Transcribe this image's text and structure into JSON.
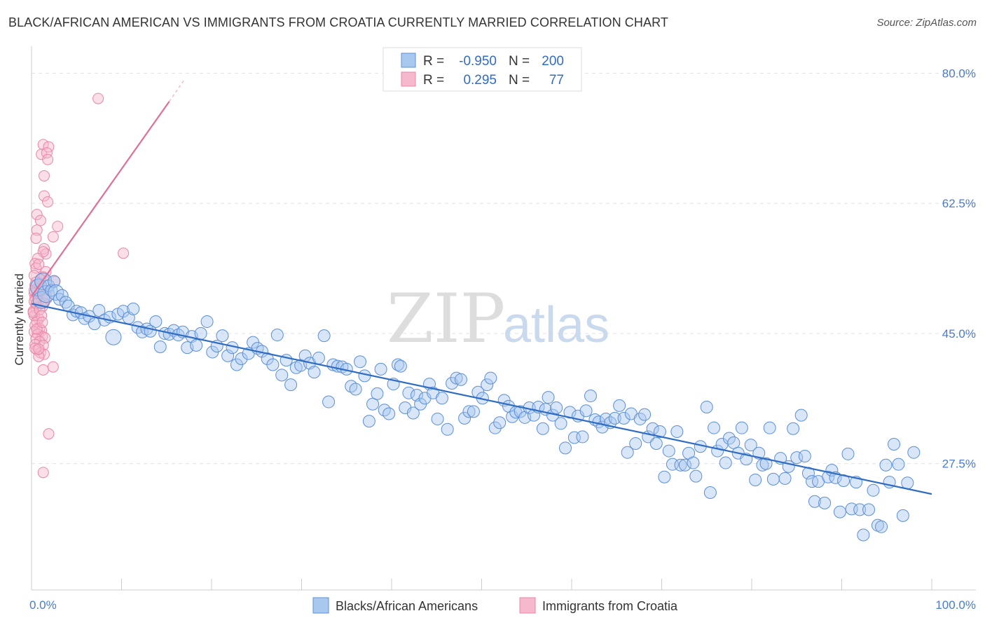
{
  "header": {
    "title": "BLACK/AFRICAN AMERICAN VS IMMIGRANTS FROM CROATIA CURRENTLY MARRIED CORRELATION CHART",
    "source": "Source: ZipAtlas.com"
  },
  "watermark": {
    "part1": "ZIP",
    "part2": "atlas"
  },
  "legend": {
    "rows": [
      {
        "r_label": "R =",
        "r_value": "-0.950",
        "n_label": "N =",
        "n_value": "200"
      },
      {
        "r_label": "R =",
        "r_value": "0.295",
        "n_label": "N =",
        "n_value": "77"
      }
    ]
  },
  "bottom_legend": {
    "items": [
      "Blacks/African Americans",
      "Immigrants from Croatia"
    ]
  },
  "colors": {
    "blue_fill": "#a9c8ef",
    "blue_stroke": "#5b8fd6",
    "blue_line": "#2f6cc4",
    "pink_fill": "#f6b8cc",
    "pink_stroke": "#e886a6",
    "pink_line": "#e06f98",
    "grid": "#e3e3e3"
  },
  "chart_data": {
    "type": "scatter",
    "title": "BLACK/AFRICAN AMERICAN VS IMMIGRANTS FROM CROATIA CURRENTLY MARRIED CORRELATION CHART",
    "xlabel": "",
    "ylabel": "Currently Married",
    "x_tick_labels": [
      "0.0%",
      "100.0%"
    ],
    "y_tick_labels": [
      "27.5%",
      "45.0%",
      "62.5%",
      "80.0%"
    ],
    "y_ticks": [
      27.5,
      45.0,
      62.5,
      80.0
    ],
    "xlim": [
      0,
      100
    ],
    "ylim": [
      10.5,
      82.5
    ],
    "grid": true,
    "legend_position": "top-center",
    "series": [
      {
        "name": "Blacks/African Americans",
        "r": -0.95,
        "n": 200,
        "trend": {
          "x0": 0,
          "y0": 49.0,
          "x1": 100,
          "y1": 23.4
        },
        "points": [
          [
            0.8,
            51.2
          ],
          [
            1.1,
            49.5
          ],
          [
            1.3,
            52.0
          ],
          [
            1.6,
            50.3
          ],
          [
            1.9,
            51.4
          ],
          [
            2.2,
            50.8
          ],
          [
            2.5,
            52.0
          ],
          [
            2.7,
            50.5
          ],
          [
            3.1,
            49.6
          ],
          [
            3.4,
            50.1
          ],
          [
            3.8,
            49.2
          ],
          [
            4.1,
            48.7
          ],
          [
            4.6,
            47.5
          ],
          [
            5.0,
            48.0
          ],
          [
            5.5,
            47.8
          ],
          [
            5.9,
            47.0
          ],
          [
            6.4,
            47.3
          ],
          [
            7.0,
            46.3
          ],
          [
            7.5,
            48.1
          ],
          [
            8.1,
            46.8
          ],
          [
            8.7,
            47.2
          ],
          [
            9.1,
            44.5
          ],
          [
            9.6,
            47.6
          ],
          [
            10.2,
            48.0
          ],
          [
            10.8,
            47.1
          ],
          [
            11.3,
            48.3
          ],
          [
            11.8,
            45.8
          ],
          [
            12.3,
            45.2
          ],
          [
            12.8,
            45.6
          ],
          [
            13.2,
            45.3
          ],
          [
            13.8,
            46.6
          ],
          [
            14.3,
            43.2
          ],
          [
            14.8,
            45.0
          ],
          [
            15.3,
            44.9
          ],
          [
            15.8,
            45.4
          ],
          [
            16.3,
            44.8
          ],
          [
            16.8,
            45.2
          ],
          [
            17.3,
            43.1
          ],
          [
            17.8,
            44.6
          ],
          [
            18.3,
            43.4
          ],
          [
            18.8,
            45.0
          ],
          [
            19.5,
            46.6
          ],
          [
            20.1,
            42.5
          ],
          [
            20.6,
            43.3
          ],
          [
            21.2,
            44.7
          ],
          [
            21.8,
            42.0
          ],
          [
            22.3,
            43.1
          ],
          [
            22.8,
            40.8
          ],
          [
            23.3,
            41.6
          ],
          [
            24.1,
            42.3
          ],
          [
            24.6,
            43.8
          ],
          [
            25.1,
            43.0
          ],
          [
            25.6,
            42.6
          ],
          [
            26.2,
            41.6
          ],
          [
            26.8,
            40.8
          ],
          [
            27.3,
            44.8
          ],
          [
            27.8,
            39.4
          ],
          [
            28.3,
            41.4
          ],
          [
            28.8,
            38.1
          ],
          [
            29.4,
            40.4
          ],
          [
            29.9,
            40.7
          ],
          [
            30.4,
            42.0
          ],
          [
            30.9,
            41.0
          ],
          [
            31.4,
            39.8
          ],
          [
            31.9,
            41.7
          ],
          [
            32.5,
            44.7
          ],
          [
            33.0,
            35.8
          ],
          [
            33.5,
            40.8
          ],
          [
            34.0,
            40.6
          ],
          [
            34.5,
            40.5
          ],
          [
            35.0,
            40.2
          ],
          [
            35.5,
            37.9
          ],
          [
            36.0,
            37.5
          ],
          [
            36.5,
            41.2
          ],
          [
            37.0,
            39.3
          ],
          [
            37.5,
            33.2
          ],
          [
            37.9,
            35.5
          ],
          [
            38.4,
            36.9
          ],
          [
            38.8,
            40.2
          ],
          [
            39.2,
            34.7
          ],
          [
            39.7,
            34.2
          ],
          [
            40.2,
            38.2
          ],
          [
            40.7,
            40.8
          ],
          [
            41.0,
            40.6
          ],
          [
            41.5,
            35.0
          ],
          [
            41.9,
            37.0
          ],
          [
            42.4,
            34.3
          ],
          [
            42.8,
            36.7
          ],
          [
            43.2,
            35.5
          ],
          [
            43.7,
            36.3
          ],
          [
            44.2,
            38.2
          ],
          [
            44.6,
            37.0
          ],
          [
            45.1,
            33.5
          ],
          [
            45.6,
            36.3
          ],
          [
            46.2,
            32.1
          ],
          [
            46.7,
            38.3
          ],
          [
            47.2,
            39.0
          ],
          [
            47.7,
            38.8
          ],
          [
            48.1,
            33.6
          ],
          [
            48.6,
            34.5
          ],
          [
            49.1,
            34.5
          ],
          [
            49.6,
            37.1
          ],
          [
            50.1,
            36.3
          ],
          [
            50.6,
            38.1
          ],
          [
            51.0,
            39.0
          ],
          [
            51.5,
            32.3
          ],
          [
            52.0,
            33.0
          ],
          [
            52.5,
            36.0
          ],
          [
            53.0,
            35.2
          ],
          [
            53.4,
            33.8
          ],
          [
            53.8,
            34.4
          ],
          [
            54.3,
            34.5
          ],
          [
            54.8,
            33.7
          ],
          [
            55.3,
            35.0
          ],
          [
            55.8,
            34.0
          ],
          [
            56.3,
            35.1
          ],
          [
            56.8,
            32.2
          ],
          [
            57.1,
            34.8
          ],
          [
            57.4,
            36.4
          ],
          [
            57.9,
            34.0
          ],
          [
            58.3,
            35.0
          ],
          [
            58.8,
            32.9
          ],
          [
            59.3,
            29.6
          ],
          [
            59.8,
            34.4
          ],
          [
            60.3,
            31.0
          ],
          [
            60.7,
            33.9
          ],
          [
            61.2,
            31.1
          ],
          [
            61.6,
            34.6
          ],
          [
            62.1,
            36.6
          ],
          [
            62.6,
            33.4
          ],
          [
            63.0,
            33.1
          ],
          [
            63.4,
            32.4
          ],
          [
            63.8,
            33.5
          ],
          [
            64.3,
            33.0
          ],
          [
            64.8,
            33.6
          ],
          [
            65.3,
            35.3
          ],
          [
            65.8,
            33.6
          ],
          [
            66.2,
            29.0
          ],
          [
            66.6,
            34.2
          ],
          [
            67.1,
            30.2
          ],
          [
            67.6,
            33.5
          ],
          [
            68.1,
            34.1
          ],
          [
            68.5,
            31.1
          ],
          [
            69.0,
            32.2
          ],
          [
            69.4,
            30.2
          ],
          [
            69.8,
            31.8
          ],
          [
            70.3,
            25.7
          ],
          [
            70.8,
            29.2
          ],
          [
            71.2,
            27.4
          ],
          [
            71.7,
            31.8
          ],
          [
            72.1,
            27.3
          ],
          [
            72.6,
            27.3
          ],
          [
            73.0,
            28.9
          ],
          [
            73.5,
            27.6
          ],
          [
            73.8,
            25.8
          ],
          [
            74.3,
            29.8
          ],
          [
            75.0,
            35.1
          ],
          [
            75.4,
            23.6
          ],
          [
            75.8,
            32.3
          ],
          [
            76.2,
            29.2
          ],
          [
            76.7,
            30.1
          ],
          [
            77.1,
            27.6
          ],
          [
            77.5,
            30.9
          ],
          [
            78.0,
            30.3
          ],
          [
            78.5,
            28.9
          ],
          [
            78.9,
            32.3
          ],
          [
            79.4,
            28.1
          ],
          [
            79.9,
            30.0
          ],
          [
            80.4,
            25.3
          ],
          [
            80.8,
            28.9
          ],
          [
            81.2,
            27.3
          ],
          [
            81.6,
            27.5
          ],
          [
            82.0,
            32.3
          ],
          [
            82.4,
            25.4
          ],
          [
            83.2,
            28.2
          ],
          [
            83.7,
            25.5
          ],
          [
            84.1,
            27.1
          ],
          [
            84.6,
            32.2
          ],
          [
            85.0,
            28.3
          ],
          [
            85.5,
            34.0
          ],
          [
            85.9,
            28.5
          ],
          [
            86.3,
            26.2
          ],
          [
            86.7,
            25.1
          ],
          [
            87.0,
            22.4
          ],
          [
            87.4,
            25.1
          ],
          [
            88.1,
            22.2
          ],
          [
            88.5,
            25.7
          ],
          [
            88.9,
            26.6
          ],
          [
            89.3,
            25.6
          ],
          [
            89.8,
            21.0
          ],
          [
            90.2,
            25.2
          ],
          [
            90.7,
            28.8
          ],
          [
            91.1,
            21.4
          ],
          [
            91.6,
            25.0
          ],
          [
            92.0,
            21.3
          ],
          [
            92.4,
            17.9
          ],
          [
            93.0,
            21.3
          ],
          [
            93.5,
            23.9
          ],
          [
            94.0,
            19.2
          ],
          [
            94.4,
            19.0
          ],
          [
            94.9,
            27.3
          ],
          [
            95.3,
            25.0
          ],
          [
            95.8,
            30.1
          ],
          [
            96.3,
            27.4
          ],
          [
            96.8,
            20.5
          ],
          [
            97.3,
            24.9
          ],
          [
            98.0,
            29.0
          ]
        ]
      },
      {
        "name": "Immigrants from Croatia",
        "r": 0.295,
        "n": 77,
        "trend": {
          "x0": 0,
          "y0": 50.0,
          "x1": 15.3,
          "y1": 76.2,
          "dashed_to": {
            "x": 16.9,
            "y": 79.0
          }
        },
        "points": [
          [
            7.4,
            76.6
          ],
          [
            1.3,
            70.4
          ],
          [
            1.9,
            70.1
          ],
          [
            1.1,
            69.1
          ],
          [
            1.7,
            69.3
          ],
          [
            1.8,
            68.4
          ],
          [
            1.4,
            66.2
          ],
          [
            1.4,
            63.5
          ],
          [
            1.8,
            62.7
          ],
          [
            0.6,
            61.0
          ],
          [
            1.0,
            60.2
          ],
          [
            2.9,
            59.4
          ],
          [
            0.6,
            58.9
          ],
          [
            2.4,
            58.0
          ],
          [
            0.5,
            57.8
          ],
          [
            1.4,
            56.4
          ],
          [
            1.6,
            55.7
          ],
          [
            1.3,
            56.0
          ],
          [
            10.2,
            55.8
          ],
          [
            0.7,
            55.1
          ],
          [
            0.4,
            54.4
          ],
          [
            0.5,
            53.8
          ],
          [
            0.8,
            54.3
          ],
          [
            1.6,
            53.3
          ],
          [
            1.3,
            52.6
          ],
          [
            0.3,
            52.8
          ],
          [
            2.6,
            52.0
          ],
          [
            0.9,
            51.8
          ],
          [
            0.4,
            51.5
          ],
          [
            1.1,
            51.5
          ],
          [
            0.6,
            51.0
          ],
          [
            1.5,
            50.8
          ],
          [
            0.3,
            50.4
          ],
          [
            1.0,
            50.6
          ],
          [
            0.7,
            50.0
          ],
          [
            0.4,
            49.8
          ],
          [
            1.7,
            49.7
          ],
          [
            0.3,
            49.3
          ],
          [
            0.8,
            49.3
          ],
          [
            1.4,
            49.1
          ],
          [
            1.2,
            48.6
          ],
          [
            0.5,
            48.4
          ],
          [
            0.2,
            48.0
          ],
          [
            0.3,
            47.4
          ],
          [
            0.8,
            47.0
          ],
          [
            0.6,
            46.6
          ],
          [
            0.4,
            46.1
          ],
          [
            0.9,
            45.7
          ],
          [
            1.1,
            45.4
          ],
          [
            0.3,
            45.2
          ],
          [
            0.7,
            44.9
          ],
          [
            1.2,
            44.6
          ],
          [
            0.5,
            44.3
          ],
          [
            1.5,
            44.4
          ],
          [
            0.9,
            43.9
          ],
          [
            0.4,
            43.5
          ],
          [
            1.3,
            43.4
          ],
          [
            0.6,
            42.8
          ],
          [
            1.0,
            42.4
          ],
          [
            1.4,
            42.2
          ],
          [
            0.8,
            41.9
          ],
          [
            2.4,
            40.5
          ],
          [
            1.3,
            40.1
          ],
          [
            0.2,
            47.8
          ],
          [
            0.5,
            49.0
          ],
          [
            0.3,
            50.8
          ],
          [
            1.0,
            52.3
          ],
          [
            0.9,
            48.2
          ],
          [
            1.1,
            47.4
          ],
          [
            0.6,
            45.6
          ],
          [
            1.2,
            46.5
          ],
          [
            0.4,
            43.0
          ],
          [
            0.8,
            42.9
          ],
          [
            1.6,
            50.2
          ],
          [
            1.9,
            31.5
          ],
          [
            1.3,
            26.3
          ],
          [
            0.5,
            51.9
          ]
        ]
      }
    ]
  }
}
